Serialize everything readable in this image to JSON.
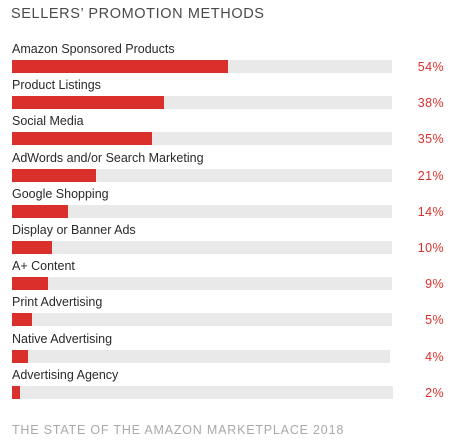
{
  "colors": {
    "bar": "#d9302c",
    "track": "#e9e9e9",
    "value_text": "#d9302c"
  },
  "footer": "THE STATE OF THE AMAZON MARKETPLACE 2018",
  "chart_data": {
    "type": "bar",
    "orientation": "horizontal",
    "title": "SELLERS’ PROMOTION METHODS",
    "categories": [
      "Amazon Sponsored Products",
      "Product Listings",
      "Social Media",
      "AdWords and/or Search Marketing",
      "Google Shopping",
      "Display or Banner Ads",
      "A+ Content",
      "Print Advertising",
      "Native Advertising",
      "Advertising Agency"
    ],
    "values": [
      54,
      38,
      35,
      21,
      14,
      10,
      9,
      5,
      4,
      2
    ],
    "value_labels": [
      "54%",
      "38%",
      "35%",
      "21%",
      "14%",
      "10%",
      "9%",
      "5%",
      "4%",
      "2%"
    ],
    "xlim": [
      0,
      100
    ],
    "grid": false,
    "legend": "none"
  }
}
